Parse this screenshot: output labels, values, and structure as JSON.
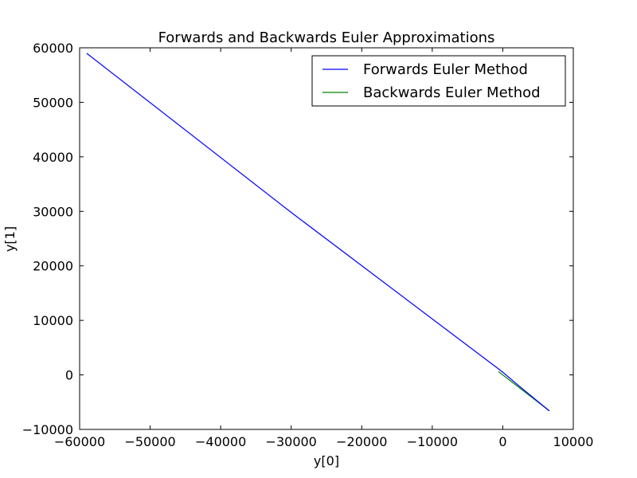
{
  "chart_data": {
    "type": "line",
    "title": "Forwards and Backwards Euler Approximations",
    "xlabel": "y[0]",
    "ylabel": "y[1]",
    "xlim": [
      -60000,
      10000
    ],
    "ylim": [
      -10000,
      60000
    ],
    "xticks": [
      -60000,
      -50000,
      -40000,
      -30000,
      -20000,
      -10000,
      0,
      10000
    ],
    "yticks": [
      -10000,
      0,
      10000,
      20000,
      30000,
      40000,
      50000,
      60000
    ],
    "xtick_labels": [
      "−60000",
      "−50000",
      "−40000",
      "−30000",
      "−20000",
      "−10000",
      "0",
      "10000"
    ],
    "ytick_labels": [
      "−10000",
      "0",
      "10000",
      "20000",
      "30000",
      "40000",
      "50000",
      "60000"
    ],
    "grid": false,
    "legend_position": "top-right",
    "series": [
      {
        "name": "Forwards Euler Method",
        "color": "#0000ff",
        "x": [
          -59000,
          -30000,
          0,
          2000,
          6600
        ],
        "y": [
          59000,
          29800,
          500,
          -1700,
          -6600
        ]
      },
      {
        "name": "Backwards Euler Method",
        "color": "#008000",
        "x": [
          -600,
          2000,
          6600
        ],
        "y": [
          600,
          -2000,
          -6600
        ]
      }
    ]
  }
}
